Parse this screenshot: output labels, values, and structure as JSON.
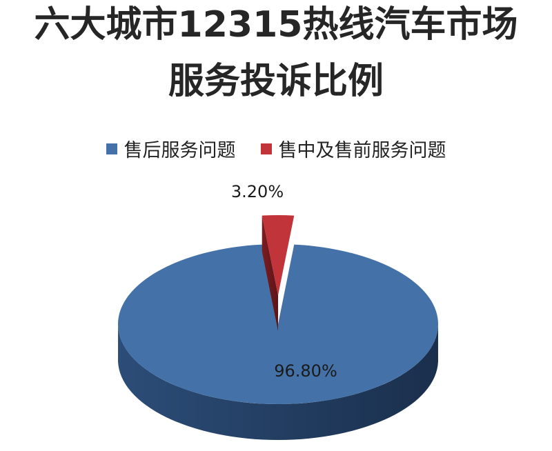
{
  "chart_data": {
    "type": "pie",
    "title_lines": [
      "六大城市12315热线汽车市场",
      "服务投诉比例"
    ],
    "legend_placement": "top",
    "categories": [
      "售后服务问题",
      "售中及售前服务问题"
    ],
    "values": [
      96.8,
      3.2
    ],
    "labels": [
      "96.80%",
      "3.20%"
    ],
    "colors": [
      "#4472a8",
      "#c0343a"
    ],
    "style": "3d-exploded"
  }
}
